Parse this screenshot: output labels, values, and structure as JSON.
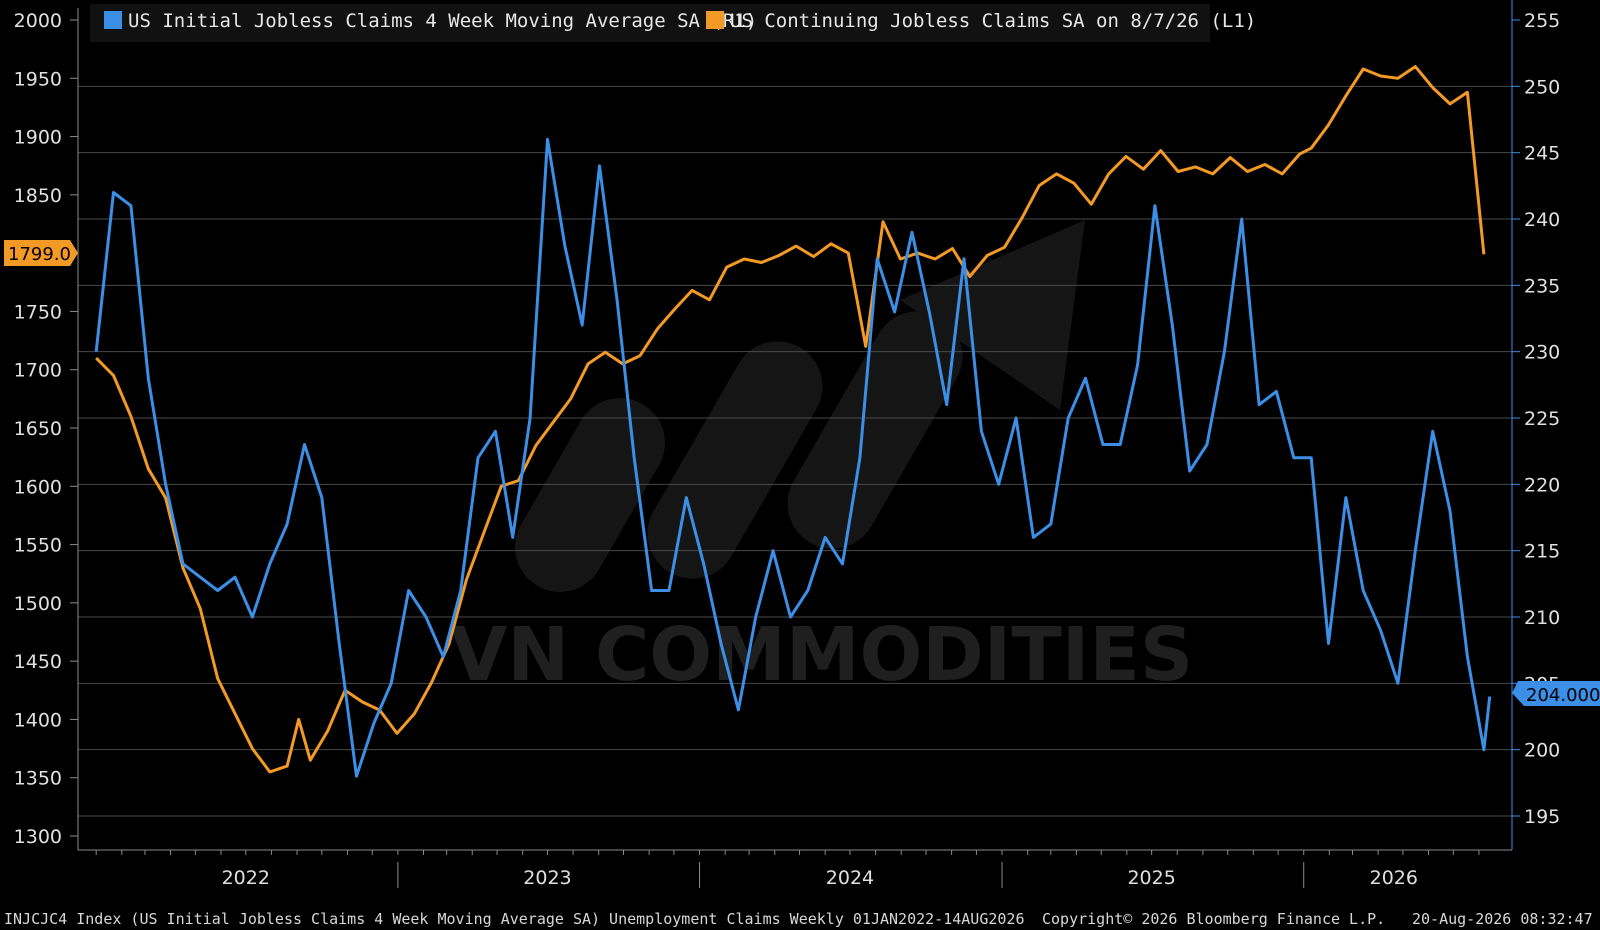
{
  "legend": {
    "initial": "US Initial Jobless Claims 4 Week Moving Average SA  (R1)",
    "continuing": "US Continuing Jobless Claims SA  on 8/7/26 (L1)"
  },
  "colors": {
    "initial": "#3b8fe6",
    "continuing": "#f39a26",
    "grid": "#4a4a4a",
    "axis": "#8a8a8a"
  },
  "watermark": "VN COMMODITIES",
  "footer": {
    "left": "INJCJC4 Index (US Initial Jobless Claims 4 Week Moving Average SA) Unemployment Claims Weekly 01JAN2022-14AUG2026",
    "copyright": "Copyright© 2026 Bloomberg Finance L.P.",
    "timestamp": "20-Aug-2026 08:32:47"
  },
  "badges": {
    "left": "1799.0",
    "right": "204.000"
  },
  "chart_data": {
    "type": "line",
    "x_ticks": [
      "2022",
      "2023",
      "2024",
      "2025",
      "2026"
    ],
    "left_axis": {
      "ylim": [
        1300,
        2000
      ],
      "ticks": [
        2000,
        1950,
        1900,
        1850,
        1750,
        1700,
        1650,
        1600,
        1550,
        1500,
        1450,
        1400,
        1350,
        1300
      ]
    },
    "right_axis": {
      "ylim": [
        190,
        255
      ],
      "ticks": [
        255,
        250,
        245,
        240,
        235,
        230,
        225,
        220,
        215,
        210,
        205,
        200,
        195
      ]
    },
    "grid": true,
    "legend_position": "top-left",
    "series": [
      {
        "name": "US Continuing Jobless Claims SA  on 8/7/26 (L1)",
        "axis": "left",
        "points": [
          [
            "2022-01-01",
            1710
          ],
          [
            "2022-01-22",
            1695
          ],
          [
            "2022-02-12",
            1660
          ],
          [
            "2022-03-05",
            1615
          ],
          [
            "2022-03-26",
            1590
          ],
          [
            "2022-04-16",
            1530
          ],
          [
            "2022-05-07",
            1495
          ],
          [
            "2022-05-28",
            1435
          ],
          [
            "2022-06-18",
            1405
          ],
          [
            "2022-07-09",
            1375
          ],
          [
            "2022-07-30",
            1355
          ],
          [
            "2022-08-20",
            1360
          ],
          [
            "2022-09-03",
            1400
          ],
          [
            "2022-09-17",
            1365
          ],
          [
            "2022-10-08",
            1390
          ],
          [
            "2022-10-29",
            1425
          ],
          [
            "2022-11-19",
            1415
          ],
          [
            "2022-12-10",
            1408
          ],
          [
            "2022-12-31",
            1388
          ],
          [
            "2023-01-21",
            1405
          ],
          [
            "2023-02-11",
            1432
          ],
          [
            "2023-03-04",
            1465
          ],
          [
            "2023-03-25",
            1520
          ],
          [
            "2023-04-15",
            1560
          ],
          [
            "2023-05-06",
            1600
          ],
          [
            "2023-05-27",
            1605
          ],
          [
            "2023-06-17",
            1635
          ],
          [
            "2023-07-08",
            1655
          ],
          [
            "2023-07-29",
            1675
          ],
          [
            "2023-08-19",
            1705
          ],
          [
            "2023-09-09",
            1715
          ],
          [
            "2023-09-30",
            1705
          ],
          [
            "2023-10-21",
            1712
          ],
          [
            "2023-11-11",
            1735
          ],
          [
            "2023-12-02",
            1752
          ],
          [
            "2023-12-23",
            1768
          ],
          [
            "2024-01-13",
            1760
          ],
          [
            "2024-02-03",
            1788
          ],
          [
            "2024-02-24",
            1795
          ],
          [
            "2024-03-16",
            1792
          ],
          [
            "2024-04-06",
            1798
          ],
          [
            "2024-04-27",
            1806
          ],
          [
            "2024-05-18",
            1797
          ],
          [
            "2024-06-08",
            1808
          ],
          [
            "2024-06-29",
            1800
          ],
          [
            "2024-07-20",
            1720
          ],
          [
            "2024-08-10",
            1827
          ],
          [
            "2024-08-31",
            1795
          ],
          [
            "2024-09-21",
            1800
          ],
          [
            "2024-10-12",
            1795
          ],
          [
            "2024-11-02",
            1804
          ],
          [
            "2024-11-23",
            1780
          ],
          [
            "2024-12-14",
            1798
          ],
          [
            "2025-01-04",
            1805
          ],
          [
            "2025-01-25",
            1830
          ],
          [
            "2025-02-15",
            1858
          ],
          [
            "2025-03-08",
            1868
          ],
          [
            "2025-03-29",
            1860
          ],
          [
            "2025-04-19",
            1842
          ],
          [
            "2025-05-10",
            1868
          ],
          [
            "2025-05-31",
            1883
          ],
          [
            "2025-06-21",
            1872
          ],
          [
            "2025-07-12",
            1888
          ],
          [
            "2025-08-02",
            1870
          ],
          [
            "2025-08-23",
            1874
          ],
          [
            "2025-09-13",
            1868
          ],
          [
            "2025-10-04",
            1882
          ],
          [
            "2025-10-25",
            1870
          ],
          [
            "2025-11-15",
            1876
          ],
          [
            "2025-12-06",
            1868
          ],
          [
            "2025-12-27",
            1885
          ],
          [
            "2026-01-10",
            1890
          ],
          [
            "2026-01-31",
            1910
          ],
          [
            "2026-02-21",
            1935
          ],
          [
            "2026-03-14",
            1958
          ],
          [
            "2026-04-04",
            1952
          ],
          [
            "2026-04-25",
            1950
          ],
          [
            "2026-05-16",
            1960
          ],
          [
            "2026-06-06",
            1942
          ],
          [
            "2026-06-27",
            1928
          ],
          [
            "2026-07-18",
            1938
          ],
          [
            "2026-08-07",
            1799
          ]
        ]
      },
      {
        "name": "US Initial Jobless Claims 4 Week Moving Average SA  (R1)",
        "axis": "right",
        "points": [
          [
            "2022-01-01",
            230
          ],
          [
            "2022-01-22",
            242
          ],
          [
            "2022-02-12",
            241
          ],
          [
            "2022-03-05",
            228
          ],
          [
            "2022-03-26",
            220
          ],
          [
            "2022-04-16",
            214
          ],
          [
            "2022-05-07",
            213
          ],
          [
            "2022-05-28",
            212
          ],
          [
            "2022-06-18",
            213
          ],
          [
            "2022-07-09",
            210
          ],
          [
            "2022-07-30",
            214
          ],
          [
            "2022-08-20",
            217
          ],
          [
            "2022-09-10",
            223
          ],
          [
            "2022-10-01",
            219
          ],
          [
            "2022-10-22",
            208
          ],
          [
            "2022-11-12",
            198
          ],
          [
            "2022-12-03",
            202
          ],
          [
            "2022-12-24",
            205
          ],
          [
            "2023-01-14",
            212
          ],
          [
            "2023-02-04",
            210
          ],
          [
            "2023-02-25",
            207
          ],
          [
            "2023-03-18",
            212
          ],
          [
            "2023-04-08",
            222
          ],
          [
            "2023-04-29",
            224
          ],
          [
            "2023-05-20",
            216
          ],
          [
            "2023-06-10",
            225
          ],
          [
            "2023-07-01",
            246
          ],
          [
            "2023-07-22",
            238
          ],
          [
            "2023-08-12",
            232
          ],
          [
            "2023-09-02",
            244
          ],
          [
            "2023-09-23",
            234
          ],
          [
            "2023-10-14",
            222
          ],
          [
            "2023-11-04",
            212
          ],
          [
            "2023-11-25",
            212
          ],
          [
            "2023-12-16",
            219
          ],
          [
            "2024-01-06",
            214
          ],
          [
            "2024-01-27",
            208
          ],
          [
            "2024-02-17",
            203
          ],
          [
            "2024-03-09",
            210
          ],
          [
            "2024-03-30",
            215
          ],
          [
            "2024-04-20",
            210
          ],
          [
            "2024-05-11",
            212
          ],
          [
            "2024-06-01",
            216
          ],
          [
            "2024-06-22",
            214
          ],
          [
            "2024-07-13",
            222
          ],
          [
            "2024-08-03",
            237
          ],
          [
            "2024-08-24",
            233
          ],
          [
            "2024-09-14",
            239
          ],
          [
            "2024-10-05",
            233
          ],
          [
            "2024-10-26",
            226
          ],
          [
            "2024-11-16",
            237
          ],
          [
            "2024-12-07",
            224
          ],
          [
            "2024-12-28",
            220
          ],
          [
            "2025-01-18",
            225
          ],
          [
            "2025-02-08",
            216
          ],
          [
            "2025-03-01",
            217
          ],
          [
            "2025-03-22",
            225
          ],
          [
            "2025-04-12",
            228
          ],
          [
            "2025-05-03",
            223
          ],
          [
            "2025-05-24",
            223
          ],
          [
            "2025-06-14",
            229
          ],
          [
            "2025-07-05",
            241
          ],
          [
            "2025-07-26",
            232
          ],
          [
            "2025-08-16",
            221
          ],
          [
            "2025-09-06",
            223
          ],
          [
            "2025-09-27",
            230
          ],
          [
            "2025-10-18",
            240
          ],
          [
            "2025-11-08",
            226
          ],
          [
            "2025-11-29",
            227
          ],
          [
            "2025-12-20",
            222
          ],
          [
            "2026-01-10",
            222
          ],
          [
            "2026-01-31",
            208
          ],
          [
            "2026-02-21",
            219
          ],
          [
            "2026-03-14",
            212
          ],
          [
            "2026-04-04",
            209
          ],
          [
            "2026-04-25",
            205
          ],
          [
            "2026-05-16",
            215
          ],
          [
            "2026-06-06",
            224
          ],
          [
            "2026-06-27",
            218
          ],
          [
            "2026-07-18",
            207
          ],
          [
            "2026-08-07",
            200
          ],
          [
            "2026-08-14",
            204
          ]
        ]
      }
    ]
  }
}
